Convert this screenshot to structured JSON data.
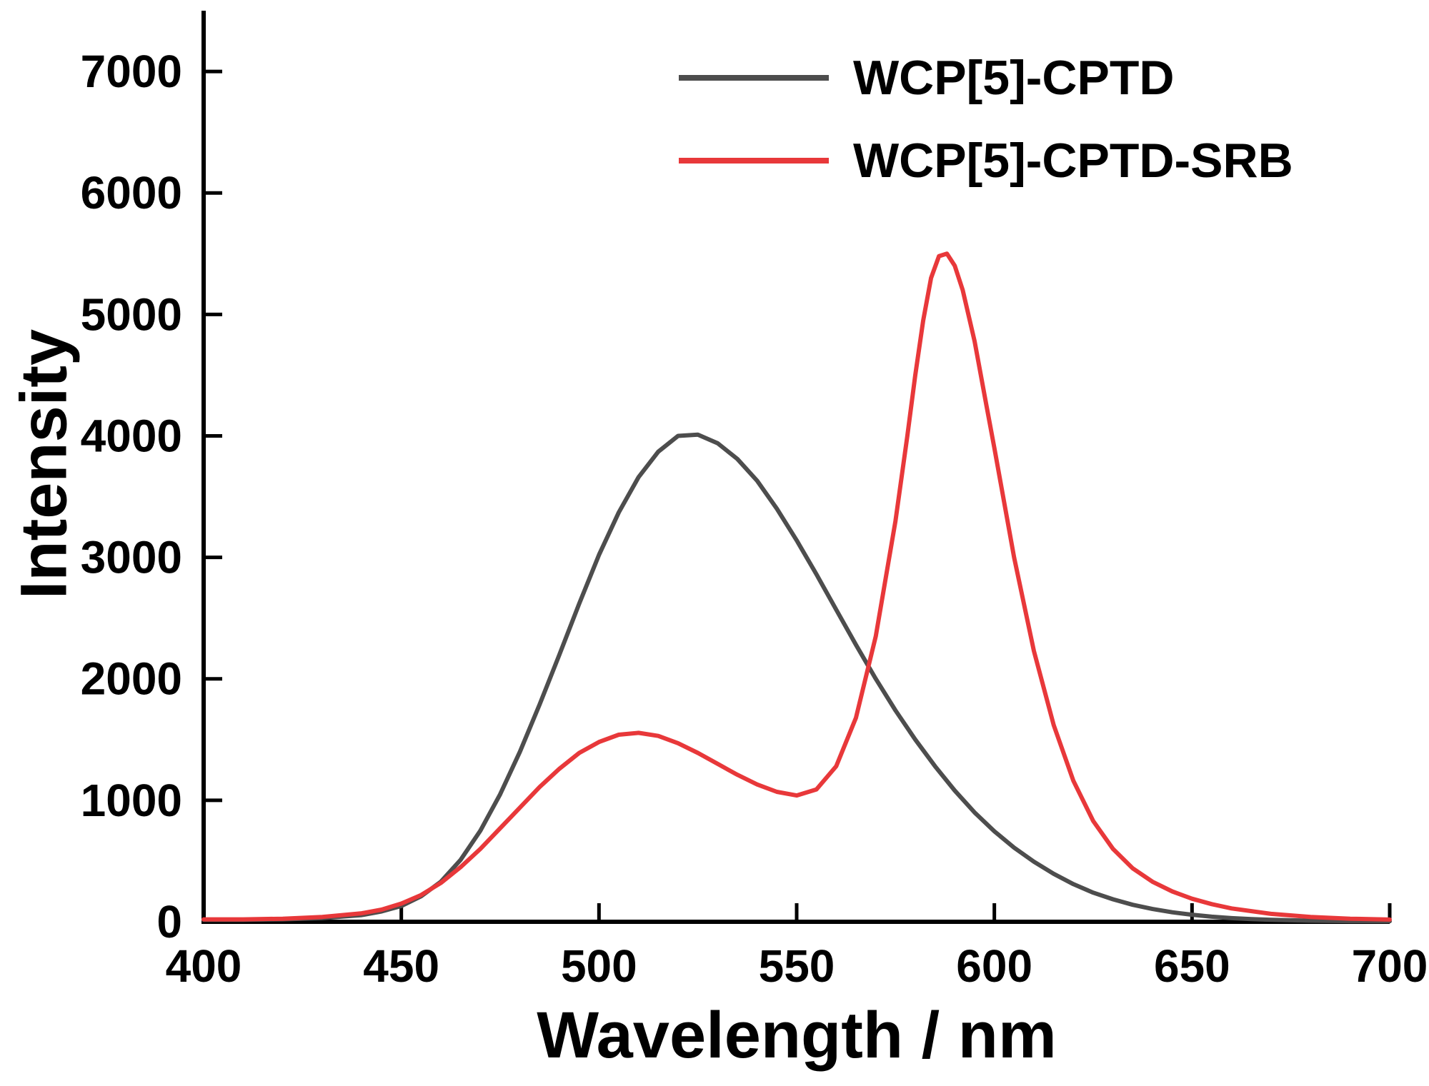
{
  "chart_data": {
    "type": "line",
    "title": "",
    "xlabel": "Wavelength / nm",
    "ylabel": "Intensity",
    "xlim": [
      400,
      700
    ],
    "ylim": [
      0,
      7500
    ],
    "xticks": [
      400,
      450,
      500,
      550,
      600,
      650,
      700
    ],
    "yticks": [
      0,
      1000,
      2000,
      3000,
      4000,
      5000,
      6000,
      7000
    ],
    "grid": false,
    "legend_position": "top-right",
    "axis_color": "#000000",
    "background_color": "#ffffff",
    "series": [
      {
        "name": "WCP[5]-CPTD",
        "color": "#4d4d4d",
        "x": [
          400,
          410,
          420,
          430,
          440,
          445,
          450,
          455,
          460,
          465,
          470,
          475,
          480,
          485,
          490,
          495,
          500,
          505,
          510,
          515,
          520,
          525,
          530,
          535,
          540,
          545,
          550,
          555,
          560,
          565,
          570,
          575,
          580,
          585,
          590,
          595,
          600,
          605,
          610,
          615,
          620,
          625,
          630,
          635,
          640,
          645,
          650,
          655,
          660,
          665,
          670,
          680,
          690,
          700
        ],
        "y": [
          15,
          15,
          20,
          30,
          55,
          85,
          130,
          210,
          330,
          510,
          750,
          1050,
          1400,
          1790,
          2200,
          2620,
          3020,
          3370,
          3660,
          3870,
          4000,
          4010,
          3940,
          3810,
          3630,
          3400,
          3140,
          2860,
          2570,
          2280,
          2000,
          1740,
          1500,
          1280,
          1080,
          900,
          745,
          610,
          495,
          395,
          310,
          240,
          185,
          140,
          105,
          78,
          58,
          42,
          30,
          22,
          16,
          9,
          5,
          4
        ]
      },
      {
        "name": "WCP[5]-CPTD-SRB",
        "color": "#e8383a",
        "x": [
          400,
          410,
          420,
          430,
          440,
          445,
          450,
          455,
          460,
          465,
          470,
          475,
          480,
          485,
          490,
          495,
          500,
          505,
          510,
          515,
          520,
          525,
          530,
          535,
          540,
          545,
          550,
          555,
          560,
          565,
          570,
          575,
          578,
          580,
          582,
          584,
          586,
          588,
          590,
          592,
          595,
          598,
          600,
          605,
          610,
          615,
          620,
          625,
          630,
          635,
          640,
          645,
          650,
          655,
          660,
          670,
          680,
          690,
          700
        ],
        "y": [
          20,
          20,
          25,
          40,
          70,
          100,
          150,
          220,
          320,
          450,
          600,
          770,
          940,
          1110,
          1260,
          1390,
          1480,
          1540,
          1555,
          1530,
          1470,
          1390,
          1300,
          1210,
          1130,
          1070,
          1040,
          1090,
          1280,
          1680,
          2350,
          3300,
          4000,
          4500,
          4950,
          5300,
          5480,
          5500,
          5400,
          5200,
          4780,
          4250,
          3900,
          3000,
          2230,
          1620,
          1160,
          830,
          600,
          440,
          330,
          250,
          190,
          145,
          110,
          65,
          40,
          25,
          18
        ]
      }
    ]
  }
}
